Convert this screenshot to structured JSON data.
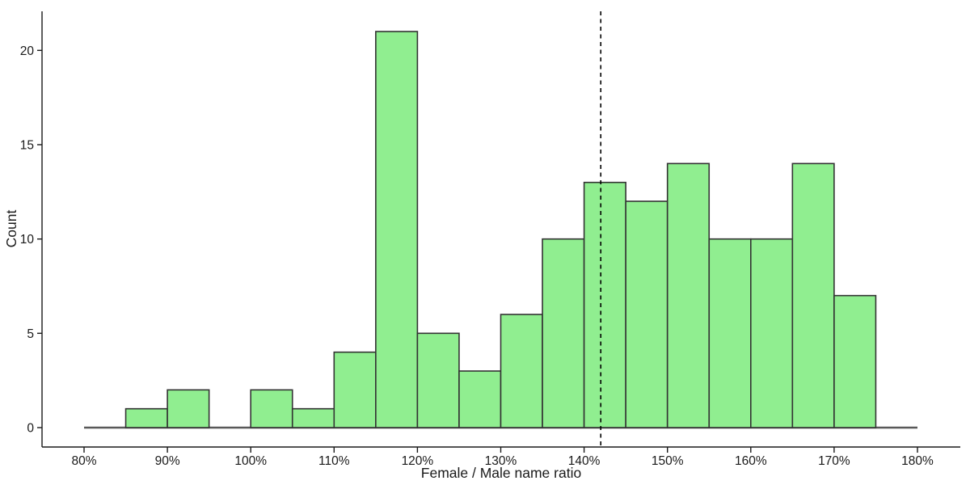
{
  "chart_data": {
    "type": "bar",
    "subtype": "histogram",
    "title": "",
    "xlabel": "Female / Male name ratio",
    "ylabel": "Count",
    "bin_width_pct": 5,
    "bin_edges_pct": [
      85,
      90,
      95,
      100,
      105,
      110,
      115,
      120,
      125,
      130,
      135,
      140,
      145,
      150,
      155,
      160,
      165,
      170,
      175
    ],
    "counts": [
      1,
      2,
      0,
      2,
      1,
      4,
      21,
      5,
      3,
      6,
      10,
      13,
      12,
      14,
      10,
      10,
      14,
      7
    ],
    "x_tick_values": [
      80,
      90,
      100,
      110,
      120,
      130,
      140,
      150,
      160,
      170,
      180
    ],
    "x_tick_labels": [
      "80%",
      "90%",
      "100%",
      "110%",
      "120%",
      "130%",
      "140%",
      "150%",
      "160%",
      "170%",
      "180%"
    ],
    "y_tick_values": [
      0,
      5,
      10,
      15,
      20
    ],
    "y_tick_labels": [
      "0",
      "5",
      "10",
      "15",
      "20"
    ],
    "xlim_pct": [
      75,
      185
    ],
    "ylim": [
      -1,
      22
    ],
    "grid": "off",
    "legend": "none",
    "reference_line": {
      "x_pct": 142,
      "style": "dashed",
      "color": "#000000"
    },
    "zero_baseline": {
      "y": 0,
      "x_from_pct": 80,
      "x_to_pct": 180,
      "color": "#595959"
    },
    "bar_fill": "#90EE90",
    "bar_border": "#333333",
    "axis_color": "#1a1a1a"
  }
}
